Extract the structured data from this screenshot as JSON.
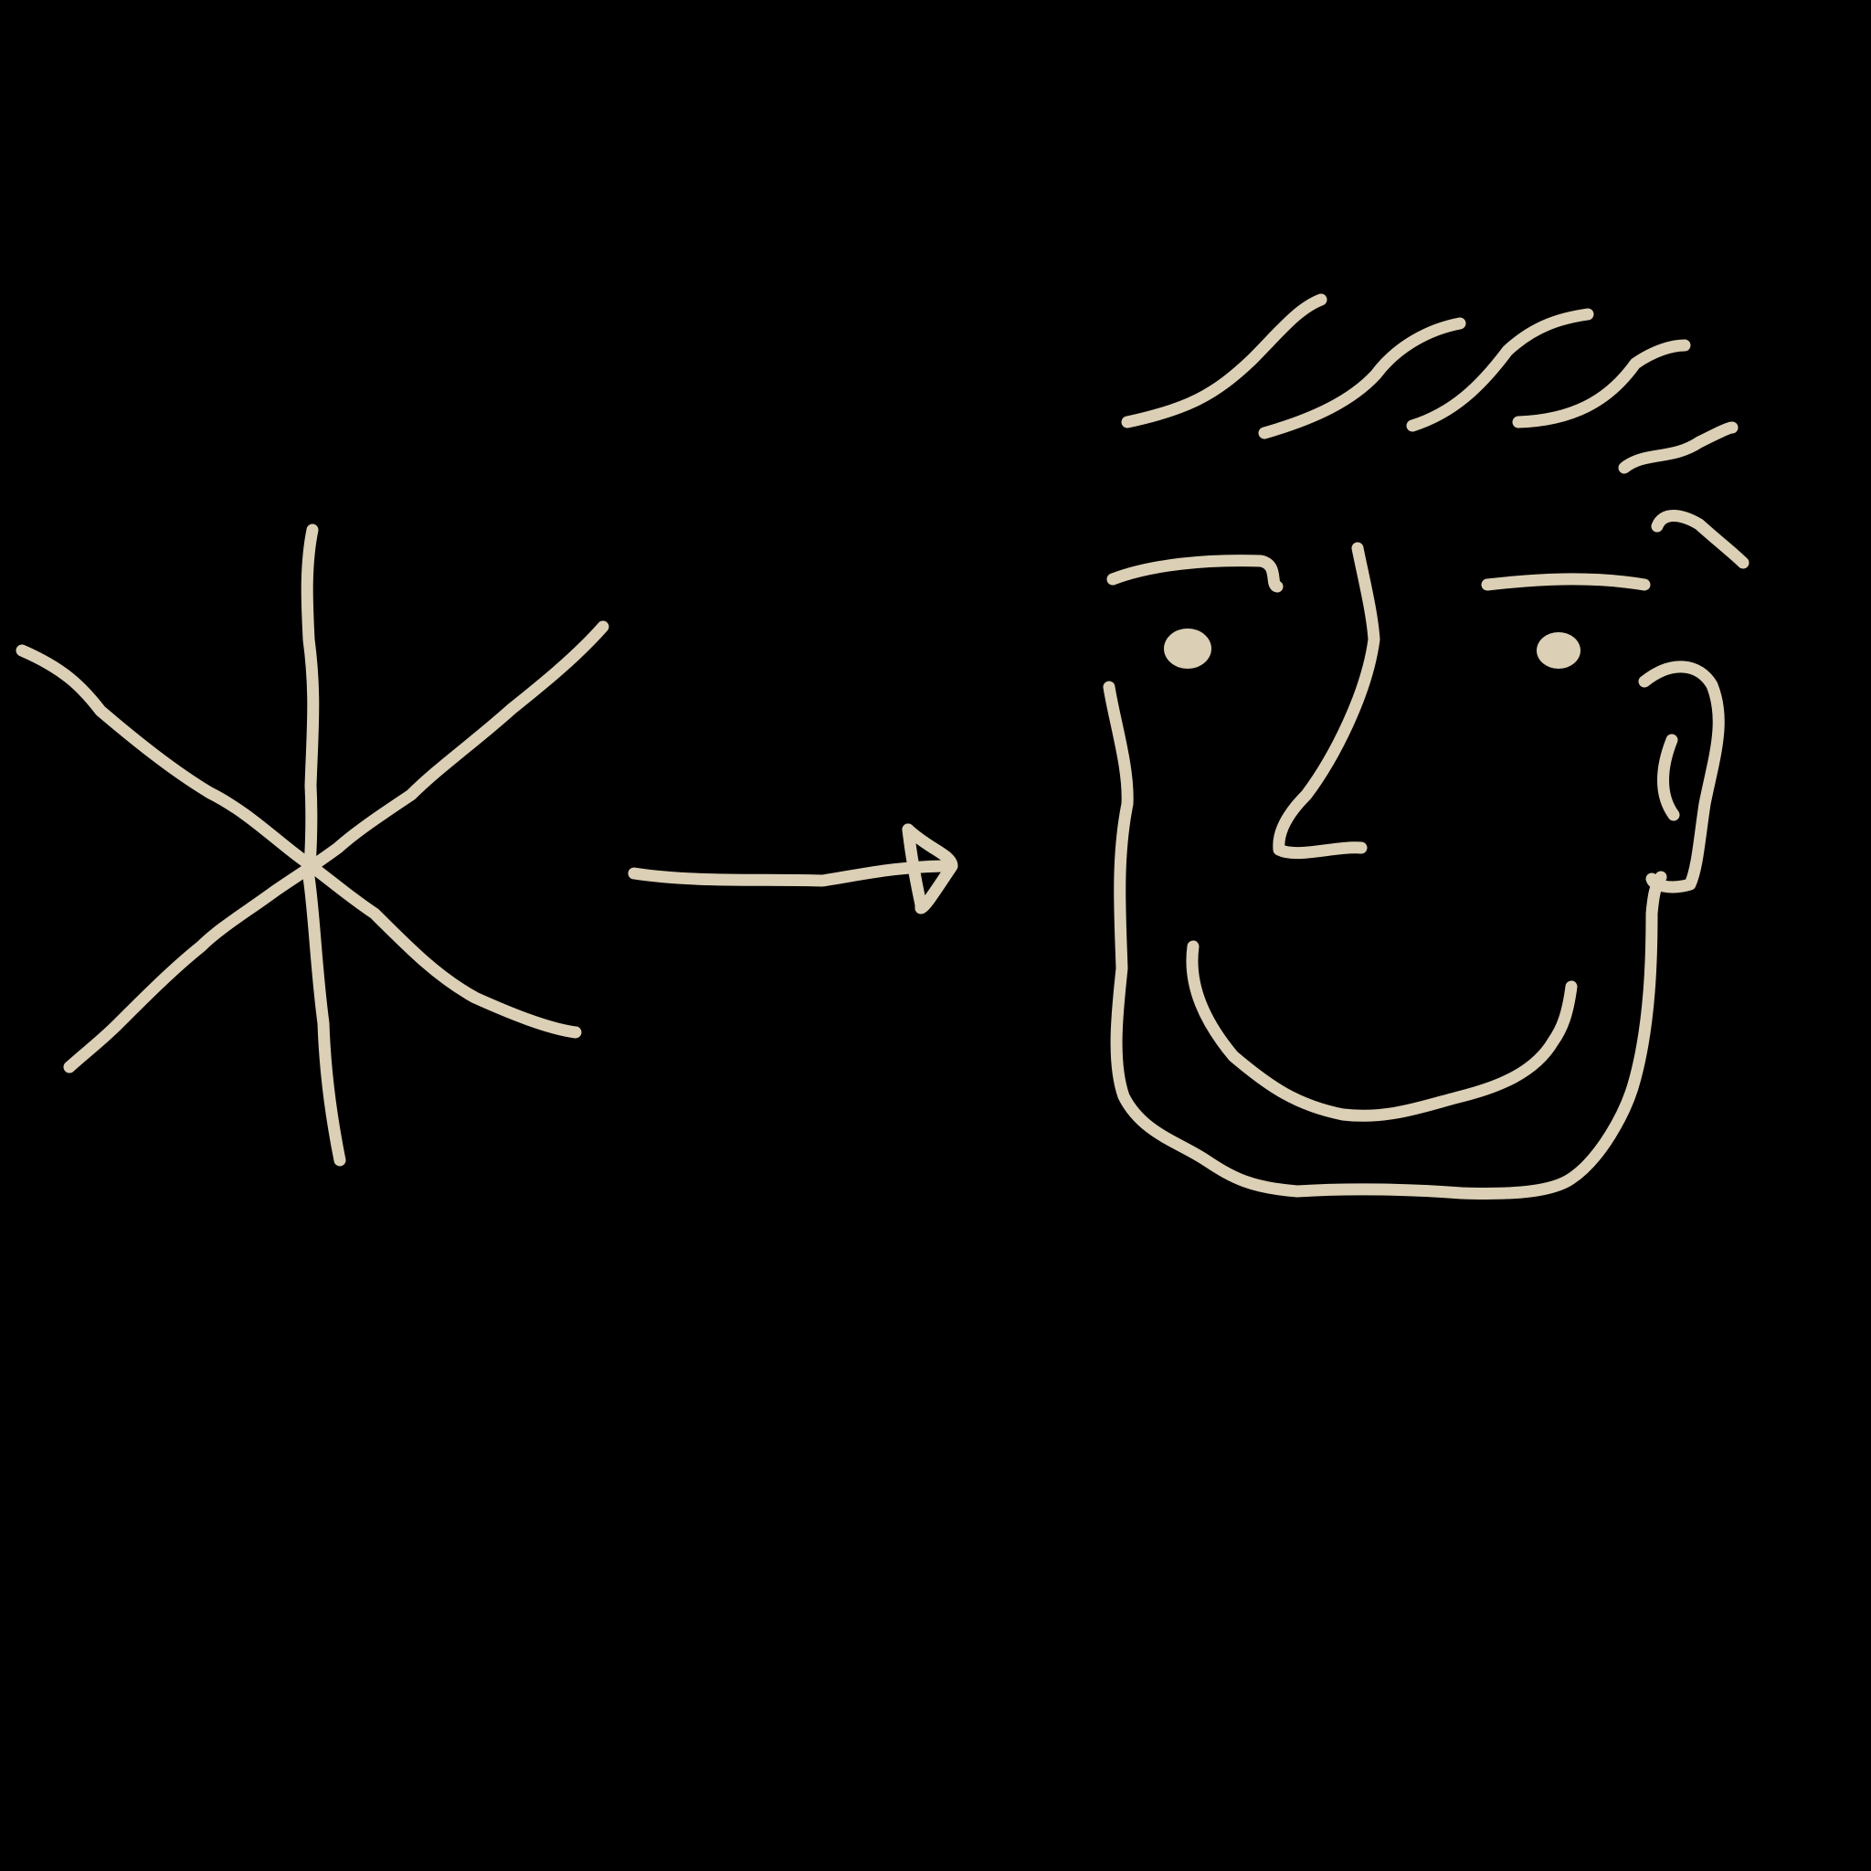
{
  "canvas": {
    "background": "#000000",
    "ink_color": "#DBCFB5"
  },
  "drawing": {
    "left_symbol": "asterisk-icon",
    "connector": "arrow-right-icon",
    "right_symbol": "smiling-face-icon"
  }
}
